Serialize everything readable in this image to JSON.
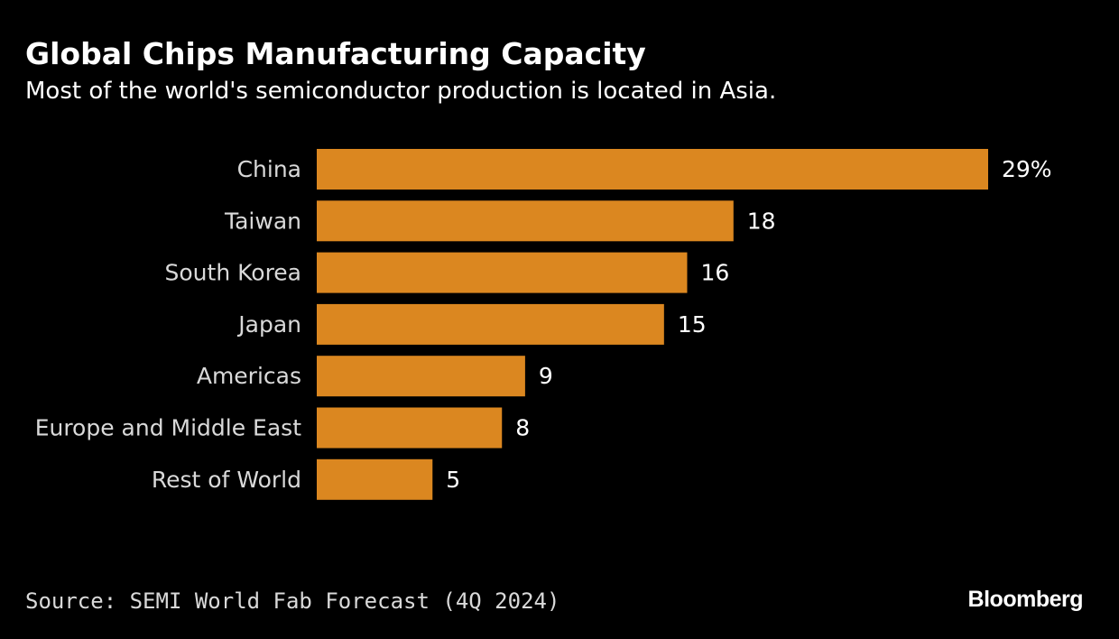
{
  "header": {
    "title": "Global Chips Manufacturing Capacity",
    "subtitle": "Most of the world's semiconductor production is located in Asia."
  },
  "footer": {
    "source": "Source: SEMI World Fab Forecast (4Q 2024)",
    "brand": "Bloomberg"
  },
  "colors": {
    "bar": "#DB8720",
    "background": "#000000"
  },
  "chart_data": {
    "type": "bar",
    "orientation": "horizontal",
    "title": "Global Chips Manufacturing Capacity",
    "subtitle": "Most of the world's semiconductor production is located in Asia.",
    "categories": [
      "China",
      "Taiwan",
      "South Korea",
      "Japan",
      "Americas",
      "Europe and Middle East",
      "Rest of World"
    ],
    "values": [
      29,
      18,
      16,
      15,
      9,
      8,
      5
    ],
    "value_labels": [
      "29%",
      "18",
      "16",
      "15",
      "9",
      "8",
      "5"
    ],
    "unit": "%",
    "xlim": [
      0,
      29
    ],
    "xlabel": "",
    "ylabel": "",
    "grid": false,
    "legend": "none"
  }
}
